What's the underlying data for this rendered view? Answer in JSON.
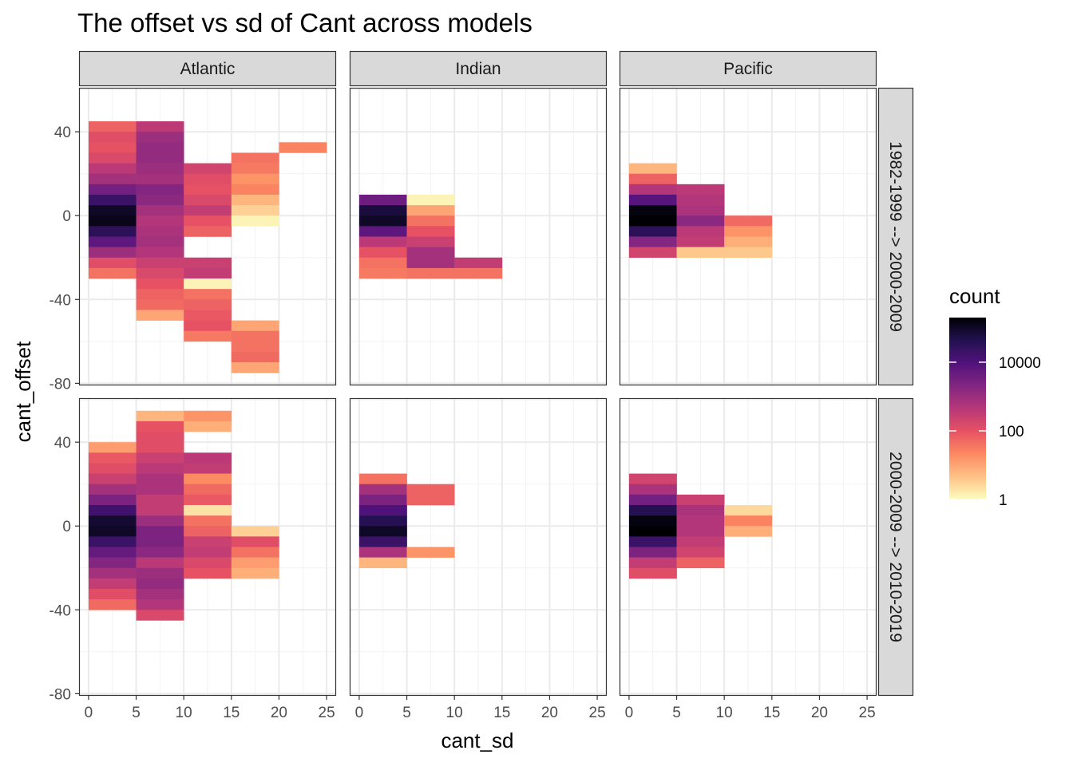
{
  "chart_data": {
    "type": "heatmap",
    "title": "The offset vs sd of Cant across models",
    "xlabel": "cant_sd",
    "ylabel": "cant_offset",
    "xlim": [
      -1,
      26
    ],
    "ylim": [
      -81,
      61
    ],
    "x_ticks": [
      0,
      5,
      10,
      15,
      20,
      25
    ],
    "y_ticks": [
      40,
      0,
      -40,
      -80
    ],
    "column_facets": [
      "Atlantic",
      "Indian",
      "Pacific"
    ],
    "row_facets": [
      "1982-1999 --> 2000-2009",
      "2000-2009 --> 2010-2019"
    ],
    "bin_width_x": 5,
    "bin_height_y": 5,
    "color_scale": {
      "type": "log10",
      "palette": "magma (reversed)",
      "min_log": 0,
      "max_log": 5.3,
      "stops": [
        "#fcfdbf",
        "#fec287",
        "#fc8961",
        "#e75263",
        "#b73779",
        "#822681",
        "#51127c",
        "#221150",
        "#000004"
      ]
    },
    "legend": {
      "title": "count",
      "labels": [
        "10000",
        "100",
        "1"
      ],
      "label_values": [
        4,
        2,
        0
      ]
    },
    "panels": [
      {
        "column": "Atlantic",
        "row": "1982-1999 --> 2000-2009",
        "cells": [
          {
            "x": 0,
            "y": 40,
            "log_count": 1.8
          },
          {
            "x": 0,
            "y": 35,
            "log_count": 2.1
          },
          {
            "x": 0,
            "y": 30,
            "log_count": 2.0
          },
          {
            "x": 0,
            "y": 25,
            "log_count": 2.2
          },
          {
            "x": 0,
            "y": 20,
            "log_count": 2.6
          },
          {
            "x": 0,
            "y": 15,
            "log_count": 2.9
          },
          {
            "x": 0,
            "y": 10,
            "log_count": 3.5
          },
          {
            "x": 0,
            "y": 5,
            "log_count": 4.3
          },
          {
            "x": 0,
            "y": 0,
            "log_count": 5.0
          },
          {
            "x": 0,
            "y": -5,
            "log_count": 5.1
          },
          {
            "x": 0,
            "y": -10,
            "log_count": 4.5
          },
          {
            "x": 0,
            "y": -15,
            "log_count": 3.8
          },
          {
            "x": 0,
            "y": -20,
            "log_count": 3.0
          },
          {
            "x": 0,
            "y": -25,
            "log_count": 2.1
          },
          {
            "x": 0,
            "y": -30,
            "log_count": 1.6
          },
          {
            "x": 5,
            "y": 40,
            "log_count": 2.6
          },
          {
            "x": 5,
            "y": 35,
            "log_count": 3.0
          },
          {
            "x": 5,
            "y": 30,
            "log_count": 3.1
          },
          {
            "x": 5,
            "y": 25,
            "log_count": 3.1
          },
          {
            "x": 5,
            "y": 20,
            "log_count": 3.0
          },
          {
            "x": 5,
            "y": 15,
            "log_count": 2.9
          },
          {
            "x": 5,
            "y": 10,
            "log_count": 3.3
          },
          {
            "x": 5,
            "y": 5,
            "log_count": 3.2
          },
          {
            "x": 5,
            "y": 0,
            "log_count": 2.9
          },
          {
            "x": 5,
            "y": -5,
            "log_count": 2.7
          },
          {
            "x": 5,
            "y": -10,
            "log_count": 2.8
          },
          {
            "x": 5,
            "y": -15,
            "log_count": 2.9
          },
          {
            "x": 5,
            "y": -20,
            "log_count": 2.7
          },
          {
            "x": 5,
            "y": -25,
            "log_count": 2.4
          },
          {
            "x": 5,
            "y": -30,
            "log_count": 2.2
          },
          {
            "x": 5,
            "y": -35,
            "log_count": 2.0
          },
          {
            "x": 5,
            "y": -40,
            "log_count": 1.8
          },
          {
            "x": 5,
            "y": -45,
            "log_count": 1.7
          },
          {
            "x": 5,
            "y": -50,
            "log_count": 1.0
          },
          {
            "x": 10,
            "y": 20,
            "log_count": 2.3
          },
          {
            "x": 10,
            "y": 15,
            "log_count": 2.1
          },
          {
            "x": 10,
            "y": 10,
            "log_count": 2.0
          },
          {
            "x": 10,
            "y": 5,
            "log_count": 2.2
          },
          {
            "x": 10,
            "y": 0,
            "log_count": 2.5
          },
          {
            "x": 10,
            "y": -5,
            "log_count": 2.0
          },
          {
            "x": 10,
            "y": -10,
            "log_count": 1.8
          },
          {
            "x": 10,
            "y": -25,
            "log_count": 2.4
          },
          {
            "x": 10,
            "y": -30,
            "log_count": 2.5
          },
          {
            "x": 10,
            "y": -35,
            "log_count": 0.1
          },
          {
            "x": 10,
            "y": -40,
            "log_count": 1.6
          },
          {
            "x": 10,
            "y": -45,
            "log_count": 1.8
          },
          {
            "x": 10,
            "y": -50,
            "log_count": 1.9
          },
          {
            "x": 10,
            "y": -55,
            "log_count": 2.0
          },
          {
            "x": 10,
            "y": -60,
            "log_count": 1.5
          },
          {
            "x": 15,
            "y": 25,
            "log_count": 1.6
          },
          {
            "x": 15,
            "y": 20,
            "log_count": 1.5
          },
          {
            "x": 15,
            "y": 15,
            "log_count": 1.2
          },
          {
            "x": 15,
            "y": 10,
            "log_count": 1.4
          },
          {
            "x": 15,
            "y": 5,
            "log_count": 0.8
          },
          {
            "x": 15,
            "y": 0,
            "log_count": 0.5
          },
          {
            "x": 15,
            "y": -5,
            "log_count": 0.1
          },
          {
            "x": 15,
            "y": -55,
            "log_count": 1.0
          },
          {
            "x": 15,
            "y": -60,
            "log_count": 1.6
          },
          {
            "x": 15,
            "y": -65,
            "log_count": 1.6
          },
          {
            "x": 15,
            "y": -70,
            "log_count": 1.7
          },
          {
            "x": 15,
            "y": -75,
            "log_count": 1.0
          },
          {
            "x": 20,
            "y": 30,
            "log_count": 1.4
          }
        ]
      },
      {
        "column": "Indian",
        "row": "1982-1999 --> 2000-2009",
        "cells": [
          {
            "x": 0,
            "y": 5,
            "log_count": 3.6
          },
          {
            "x": 0,
            "y": 0,
            "log_count": 4.8
          },
          {
            "x": 0,
            "y": -5,
            "log_count": 5.0
          },
          {
            "x": 0,
            "y": -10,
            "log_count": 3.8
          },
          {
            "x": 0,
            "y": -15,
            "log_count": 2.6
          },
          {
            "x": 0,
            "y": -20,
            "log_count": 2.0
          },
          {
            "x": 0,
            "y": -25,
            "log_count": 1.6
          },
          {
            "x": 0,
            "y": -30,
            "log_count": 1.5
          },
          {
            "x": 5,
            "y": 5,
            "log_count": 0.1
          },
          {
            "x": 5,
            "y": 0,
            "log_count": 1.0
          },
          {
            "x": 5,
            "y": -5,
            "log_count": 1.6
          },
          {
            "x": 5,
            "y": -10,
            "log_count": 2.0
          },
          {
            "x": 5,
            "y": -15,
            "log_count": 2.4
          },
          {
            "x": 5,
            "y": -20,
            "log_count": 2.9
          },
          {
            "x": 5,
            "y": -25,
            "log_count": 2.9
          },
          {
            "x": 5,
            "y": -30,
            "log_count": 1.6
          },
          {
            "x": 10,
            "y": -25,
            "log_count": 2.5
          },
          {
            "x": 10,
            "y": -30,
            "log_count": 1.6
          }
        ]
      },
      {
        "column": "Pacific",
        "row": "1982-1999 --> 2000-2009",
        "cells": [
          {
            "x": 0,
            "y": 20,
            "log_count": 0.8
          },
          {
            "x": 0,
            "y": 15,
            "log_count": 1.8
          },
          {
            "x": 0,
            "y": 10,
            "log_count": 2.7
          },
          {
            "x": 0,
            "y": 5,
            "log_count": 3.9
          },
          {
            "x": 0,
            "y": 0,
            "log_count": 5.2
          },
          {
            "x": 0,
            "y": -5,
            "log_count": 5.3
          },
          {
            "x": 0,
            "y": -10,
            "log_count": 4.5
          },
          {
            "x": 0,
            "y": -15,
            "log_count": 3.3
          },
          {
            "x": 0,
            "y": -20,
            "log_count": 2.3
          },
          {
            "x": 5,
            "y": 10,
            "log_count": 2.6
          },
          {
            "x": 5,
            "y": 5,
            "log_count": 2.7
          },
          {
            "x": 5,
            "y": 0,
            "log_count": 2.8
          },
          {
            "x": 5,
            "y": -5,
            "log_count": 3.2
          },
          {
            "x": 5,
            "y": -10,
            "log_count": 2.6
          },
          {
            "x": 5,
            "y": -15,
            "log_count": 2.5
          },
          {
            "x": 5,
            "y": -20,
            "log_count": 0.6
          },
          {
            "x": 10,
            "y": -5,
            "log_count": 1.7
          },
          {
            "x": 10,
            "y": -10,
            "log_count": 1.2
          },
          {
            "x": 10,
            "y": -15,
            "log_count": 0.9
          },
          {
            "x": 10,
            "y": -20,
            "log_count": 0.6
          }
        ]
      },
      {
        "column": "Atlantic",
        "row": "2000-2009 --> 2010-2019",
        "cells": [
          {
            "x": 0,
            "y": 35,
            "log_count": 1.1
          },
          {
            "x": 0,
            "y": 30,
            "log_count": 1.9
          },
          {
            "x": 0,
            "y": 25,
            "log_count": 2.1
          },
          {
            "x": 0,
            "y": 20,
            "log_count": 2.4
          },
          {
            "x": 0,
            "y": 15,
            "log_count": 2.9
          },
          {
            "x": 0,
            "y": 10,
            "log_count": 3.4
          },
          {
            "x": 0,
            "y": 5,
            "log_count": 4.2
          },
          {
            "x": 0,
            "y": 0,
            "log_count": 4.9
          },
          {
            "x": 0,
            "y": -5,
            "log_count": 5.0
          },
          {
            "x": 0,
            "y": -10,
            "log_count": 4.3
          },
          {
            "x": 0,
            "y": -15,
            "log_count": 3.7
          },
          {
            "x": 0,
            "y": -20,
            "log_count": 3.3
          },
          {
            "x": 0,
            "y": -25,
            "log_count": 2.9
          },
          {
            "x": 0,
            "y": -30,
            "log_count": 2.5
          },
          {
            "x": 0,
            "y": -35,
            "log_count": 2.1
          },
          {
            "x": 0,
            "y": -40,
            "log_count": 1.7
          },
          {
            "x": 5,
            "y": 50,
            "log_count": 0.8
          },
          {
            "x": 5,
            "y": 45,
            "log_count": 2.0
          },
          {
            "x": 5,
            "y": 40,
            "log_count": 2.1
          },
          {
            "x": 5,
            "y": 35,
            "log_count": 2.1
          },
          {
            "x": 5,
            "y": 30,
            "log_count": 2.4
          },
          {
            "x": 5,
            "y": 25,
            "log_count": 2.6
          },
          {
            "x": 5,
            "y": 20,
            "log_count": 2.8
          },
          {
            "x": 5,
            "y": 15,
            "log_count": 2.8
          },
          {
            "x": 5,
            "y": 10,
            "log_count": 2.5
          },
          {
            "x": 5,
            "y": 5,
            "log_count": 2.5
          },
          {
            "x": 5,
            "y": 0,
            "log_count": 3.0
          },
          {
            "x": 5,
            "y": -5,
            "log_count": 3.4
          },
          {
            "x": 5,
            "y": -10,
            "log_count": 3.4
          },
          {
            "x": 5,
            "y": -15,
            "log_count": 3.2
          },
          {
            "x": 5,
            "y": -20,
            "log_count": 2.6
          },
          {
            "x": 5,
            "y": -25,
            "log_count": 3.0
          },
          {
            "x": 5,
            "y": -30,
            "log_count": 3.1
          },
          {
            "x": 5,
            "y": -35,
            "log_count": 2.9
          },
          {
            "x": 5,
            "y": -40,
            "log_count": 2.7
          },
          {
            "x": 5,
            "y": -45,
            "log_count": 2.2
          },
          {
            "x": 10,
            "y": 50,
            "log_count": 1.2
          },
          {
            "x": 10,
            "y": 45,
            "log_count": 0.9
          },
          {
            "x": 10,
            "y": 30,
            "log_count": 2.6
          },
          {
            "x": 10,
            "y": 25,
            "log_count": 2.5
          },
          {
            "x": 10,
            "y": 20,
            "log_count": 1.3
          },
          {
            "x": 10,
            "y": 15,
            "log_count": 1.7
          },
          {
            "x": 10,
            "y": 10,
            "log_count": 1.9
          },
          {
            "x": 10,
            "y": 5,
            "log_count": 0.3
          },
          {
            "x": 10,
            "y": 0,
            "log_count": 1.6
          },
          {
            "x": 10,
            "y": -5,
            "log_count": 1.8
          },
          {
            "x": 10,
            "y": -10,
            "log_count": 2.4
          },
          {
            "x": 10,
            "y": -15,
            "log_count": 2.5
          },
          {
            "x": 10,
            "y": -20,
            "log_count": 2.2
          },
          {
            "x": 10,
            "y": -25,
            "log_count": 2.0
          },
          {
            "x": 15,
            "y": -5,
            "log_count": 0.5
          },
          {
            "x": 15,
            "y": -10,
            "log_count": 2.1
          },
          {
            "x": 15,
            "y": -15,
            "log_count": 1.6
          },
          {
            "x": 15,
            "y": -20,
            "log_count": 1.1
          },
          {
            "x": 15,
            "y": -25,
            "log_count": 0.9
          }
        ]
      },
      {
        "column": "Indian",
        "row": "2000-2009 --> 2010-2019",
        "cells": [
          {
            "x": 0,
            "y": 20,
            "log_count": 1.6
          },
          {
            "x": 0,
            "y": 15,
            "log_count": 2.9
          },
          {
            "x": 0,
            "y": 10,
            "log_count": 3.4
          },
          {
            "x": 0,
            "y": 5,
            "log_count": 4.0
          },
          {
            "x": 0,
            "y": 0,
            "log_count": 4.6
          },
          {
            "x": 0,
            "y": -5,
            "log_count": 5.0
          },
          {
            "x": 0,
            "y": -10,
            "log_count": 4.3
          },
          {
            "x": 0,
            "y": -15,
            "log_count": 2.8
          },
          {
            "x": 0,
            "y": -20,
            "log_count": 0.8
          },
          {
            "x": 5,
            "y": 15,
            "log_count": 1.8
          },
          {
            "x": 5,
            "y": 10,
            "log_count": 1.8
          },
          {
            "x": 5,
            "y": -15,
            "log_count": 1.2
          }
        ]
      },
      {
        "column": "Pacific",
        "row": "2000-2009 --> 2010-2019",
        "cells": [
          {
            "x": 0,
            "y": 20,
            "log_count": 2.3
          },
          {
            "x": 0,
            "y": 15,
            "log_count": 2.8
          },
          {
            "x": 0,
            "y": 10,
            "log_count": 3.5
          },
          {
            "x": 0,
            "y": 5,
            "log_count": 4.6
          },
          {
            "x": 0,
            "y": 0,
            "log_count": 5.2
          },
          {
            "x": 0,
            "y": -5,
            "log_count": 5.3
          },
          {
            "x": 0,
            "y": -10,
            "log_count": 4.3
          },
          {
            "x": 0,
            "y": -15,
            "log_count": 3.4
          },
          {
            "x": 0,
            "y": -20,
            "log_count": 2.5
          },
          {
            "x": 0,
            "y": -25,
            "log_count": 2.1
          },
          {
            "x": 5,
            "y": 10,
            "log_count": 2.4
          },
          {
            "x": 5,
            "y": 5,
            "log_count": 2.8
          },
          {
            "x": 5,
            "y": 0,
            "log_count": 2.7
          },
          {
            "x": 5,
            "y": -5,
            "log_count": 2.7
          },
          {
            "x": 5,
            "y": -10,
            "log_count": 2.5
          },
          {
            "x": 5,
            "y": -15,
            "log_count": 2.3
          },
          {
            "x": 5,
            "y": -20,
            "log_count": 1.8
          },
          {
            "x": 10,
            "y": 5,
            "log_count": 0.4
          },
          {
            "x": 10,
            "y": 0,
            "log_count": 1.4
          },
          {
            "x": 10,
            "y": -5,
            "log_count": 0.9
          }
        ]
      }
    ]
  }
}
